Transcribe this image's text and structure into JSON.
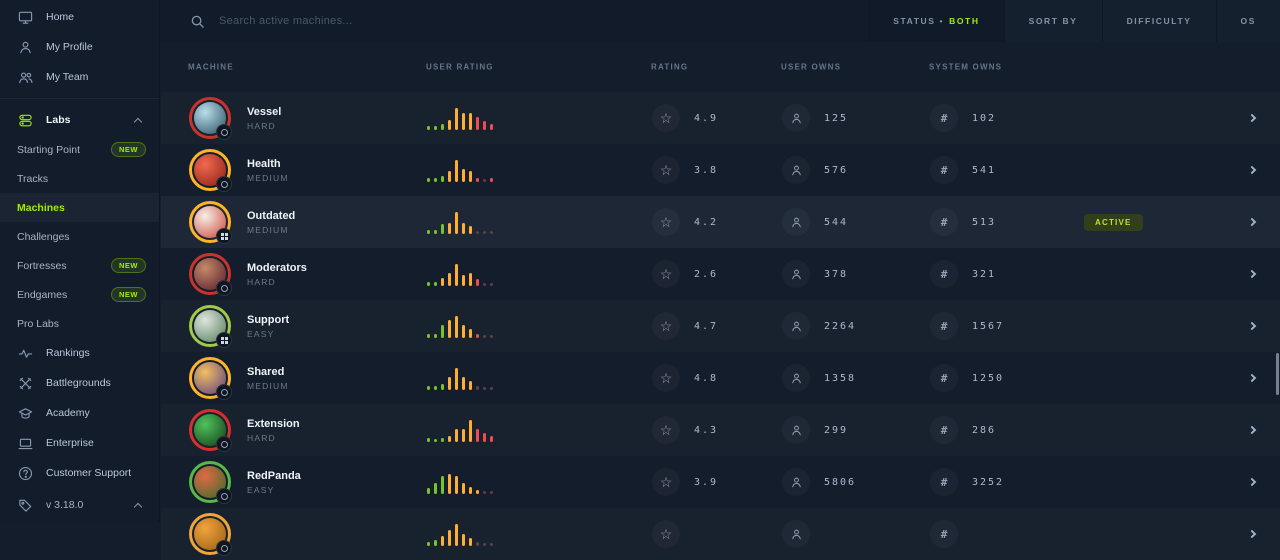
{
  "app": {
    "accent": "#9fef00",
    "background": "#141d2b"
  },
  "sidebar": {
    "items": [
      {
        "type": "main",
        "icon": "monitor-icon",
        "label": "Home"
      },
      {
        "type": "main",
        "icon": "user-icon",
        "label": "My Profile"
      },
      {
        "type": "main",
        "icon": "users-icon",
        "label": "My Team"
      },
      {
        "type": "divider"
      },
      {
        "type": "group",
        "icon": "labs-icon",
        "label": "Labs",
        "chevron": "up"
      },
      {
        "type": "sub",
        "label": "Starting Point",
        "badge": "NEW"
      },
      {
        "type": "sub",
        "label": "Tracks"
      },
      {
        "type": "sub",
        "label": "Machines",
        "active": true
      },
      {
        "type": "sub",
        "label": "Challenges"
      },
      {
        "type": "sub",
        "label": "Fortresses",
        "badge": "NEW"
      },
      {
        "type": "sub",
        "label": "Endgames",
        "badge": "NEW"
      },
      {
        "type": "sub",
        "label": "Pro Labs"
      },
      {
        "type": "main",
        "icon": "rankings-icon",
        "label": "Rankings"
      },
      {
        "type": "main",
        "icon": "battlegrounds-icon",
        "label": "Battlegrounds"
      },
      {
        "type": "main",
        "icon": "academy-icon",
        "label": "Academy"
      },
      {
        "type": "main",
        "icon": "enterprise-icon",
        "label": "Enterprise"
      },
      {
        "type": "main",
        "icon": "support-icon",
        "label": "Customer Support"
      }
    ],
    "footer": {
      "icon": "tag-icon",
      "label": "v 3.18.0",
      "chevron": "up"
    }
  },
  "topbar": {
    "search_placeholder": "Search active machines...",
    "filters": [
      {
        "label": "STATUS •",
        "value": "BOTH"
      },
      {
        "label": "SORT BY"
      },
      {
        "label": "DIFFICULTY"
      },
      {
        "label": "OS"
      }
    ]
  },
  "table": {
    "columns": [
      "MACHINE",
      "USER RATING",
      "RATING",
      "USER OWNS",
      "SYSTEM OWNS"
    ],
    "bar_palette": {
      "g": "#76c32a",
      "y": "#ffad33",
      "r": "#ef4b55",
      "f": "#5e4049"
    },
    "rows": [
      {
        "name": "Vessel",
        "difficulty": "HARD",
        "ring": "#c8342c",
        "avatar": [
          "#b8dfe8",
          "#274b63"
        ],
        "os": "other",
        "rating": "4.9",
        "user_owns": "125",
        "system_owns": "102",
        "status": "",
        "bars": [
          [
            4,
            "g"
          ],
          [
            4,
            "g"
          ],
          [
            6,
            "g"
          ],
          [
            10,
            "y"
          ],
          [
            22,
            "y"
          ],
          [
            17,
            "y"
          ],
          [
            17,
            "y"
          ],
          [
            13,
            "r"
          ],
          [
            9,
            "r"
          ],
          [
            6,
            "r"
          ]
        ]
      },
      {
        "name": "Health",
        "difficulty": "MEDIUM",
        "ring": "#ffb329",
        "avatar": [
          "#ef6a52",
          "#8c1d12"
        ],
        "os": "other",
        "rating": "3.8",
        "user_owns": "576",
        "system_owns": "541",
        "status": "",
        "bars": [
          [
            4,
            "g"
          ],
          [
            4,
            "g"
          ],
          [
            6,
            "g"
          ],
          [
            11,
            "y"
          ],
          [
            22,
            "y"
          ],
          [
            13,
            "y"
          ],
          [
            11,
            "y"
          ],
          [
            4,
            "r"
          ],
          [
            3,
            "f"
          ],
          [
            4,
            "r"
          ]
        ]
      },
      {
        "name": "Outdated",
        "difficulty": "MEDIUM",
        "ring": "#ffb329",
        "avatar": [
          "#f5f0e6",
          "#cd4034"
        ],
        "os": "windows",
        "rating": "4.2",
        "user_owns": "544",
        "system_owns": "513",
        "status": "ACTIVE",
        "active": true,
        "bars": [
          [
            4,
            "g"
          ],
          [
            4,
            "g"
          ],
          [
            10,
            "g"
          ],
          [
            11,
            "y"
          ],
          [
            22,
            "y"
          ],
          [
            11,
            "y"
          ],
          [
            8,
            "y"
          ],
          [
            3,
            "f"
          ],
          [
            3,
            "f"
          ],
          [
            3,
            "f"
          ]
        ]
      },
      {
        "name": "Moderators",
        "difficulty": "HARD",
        "ring": "#c8342c",
        "avatar": [
          "#c48a66",
          "#55182b"
        ],
        "os": "other",
        "rating": "2.6",
        "user_owns": "378",
        "system_owns": "321",
        "status": "",
        "bars": [
          [
            4,
            "g"
          ],
          [
            4,
            "g"
          ],
          [
            8,
            "y"
          ],
          [
            13,
            "y"
          ],
          [
            22,
            "y"
          ],
          [
            11,
            "y"
          ],
          [
            13,
            "y"
          ],
          [
            7,
            "r"
          ],
          [
            3,
            "f"
          ],
          [
            3,
            "f"
          ]
        ]
      },
      {
        "name": "Support",
        "difficulty": "EASY",
        "ring": "#a3c948",
        "avatar": [
          "#dfe5dc",
          "#4f7a5a"
        ],
        "os": "windows",
        "rating": "4.7",
        "user_owns": "2264",
        "system_owns": "1567",
        "status": "",
        "bars": [
          [
            4,
            "g"
          ],
          [
            4,
            "g"
          ],
          [
            13,
            "g"
          ],
          [
            18,
            "y"
          ],
          [
            22,
            "y"
          ],
          [
            13,
            "y"
          ],
          [
            9,
            "y"
          ],
          [
            4,
            "r"
          ],
          [
            3,
            "f"
          ],
          [
            3,
            "f"
          ]
        ]
      },
      {
        "name": "Shared",
        "difficulty": "MEDIUM",
        "ring": "#ffb329",
        "avatar": [
          "#f0c060",
          "#5c3a85"
        ],
        "os": "other",
        "rating": "4.8",
        "user_owns": "1358",
        "system_owns": "1250",
        "status": "",
        "bars": [
          [
            4,
            "g"
          ],
          [
            4,
            "g"
          ],
          [
            6,
            "g"
          ],
          [
            13,
            "y"
          ],
          [
            22,
            "y"
          ],
          [
            13,
            "y"
          ],
          [
            9,
            "y"
          ],
          [
            4,
            "f"
          ],
          [
            3,
            "f"
          ],
          [
            3,
            "f"
          ]
        ]
      },
      {
        "name": "Extension",
        "difficulty": "HARD",
        "ring": "#d62f2f",
        "avatar": [
          "#4fc35a",
          "#103a16"
        ],
        "os": "other",
        "rating": "4.3",
        "user_owns": "299",
        "system_owns": "286",
        "status": "",
        "bars": [
          [
            4,
            "g"
          ],
          [
            3,
            "g"
          ],
          [
            4,
            "g"
          ],
          [
            6,
            "y"
          ],
          [
            13,
            "y"
          ],
          [
            13,
            "y"
          ],
          [
            22,
            "y"
          ],
          [
            13,
            "r"
          ],
          [
            9,
            "r"
          ],
          [
            6,
            "r"
          ]
        ]
      },
      {
        "name": "RedPanda",
        "difficulty": "EASY",
        "ring": "#58b847",
        "avatar": [
          "#e06a45",
          "#356b2a"
        ],
        "os": "other",
        "rating": "3.9",
        "user_owns": "5806",
        "system_owns": "3252",
        "status": "",
        "bars": [
          [
            6,
            "g"
          ],
          [
            11,
            "g"
          ],
          [
            18,
            "g"
          ],
          [
            20,
            "y"
          ],
          [
            18,
            "y"
          ],
          [
            11,
            "y"
          ],
          [
            7,
            "y"
          ],
          [
            4,
            "y"
          ],
          [
            3,
            "f"
          ],
          [
            3,
            "f"
          ]
        ]
      },
      {
        "name": "",
        "difficulty": "",
        "ring": "#f0a43c",
        "avatar": [
          "#f0a43c",
          "#9a5b12"
        ],
        "os": "other",
        "rating": "",
        "user_owns": "",
        "system_owns": "",
        "status": "",
        "bars": [
          [
            4,
            "g"
          ],
          [
            6,
            "g"
          ],
          [
            10,
            "y"
          ],
          [
            16,
            "y"
          ],
          [
            22,
            "y"
          ],
          [
            12,
            "y"
          ],
          [
            8,
            "y"
          ],
          [
            4,
            "f"
          ],
          [
            3,
            "f"
          ],
          [
            3,
            "f"
          ]
        ]
      }
    ]
  }
}
